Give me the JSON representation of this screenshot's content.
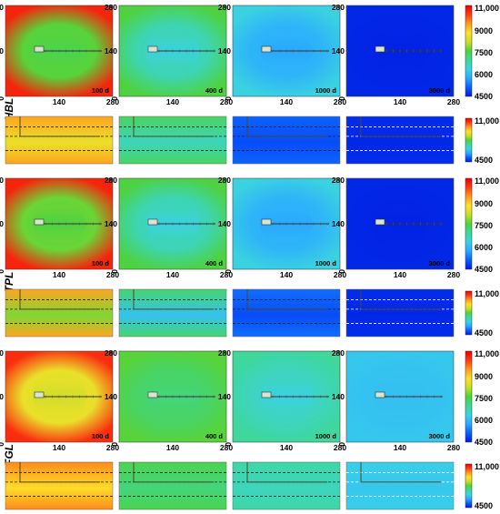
{
  "chart_data": {
    "type": "heatmap",
    "title": "",
    "axis": {
      "min": 0,
      "max": 280,
      "ticks": [
        "0",
        "140",
        "280"
      ]
    },
    "colorbar": {
      "min": 4500,
      "max": 11000,
      "map_ticks": [
        "11,000",
        "9000",
        "7500",
        "6000",
        "4500"
      ],
      "section_ticks": [
        "11,000",
        "4500"
      ]
    },
    "colormap": [
      "#0018e0",
      "#0a5cff",
      "#2aa8ff",
      "#3ad2e6",
      "#3fd79a",
      "#4fd23a",
      "#c8de2a",
      "#ffe12a",
      "#ff9a1e",
      "#ff3a14",
      "#e80000"
    ],
    "rows": [
      {
        "label": "HBL",
        "panels": [
          {
            "time": "100 d",
            "time_color": "#000000",
            "outer": 10600,
            "inner": 7600,
            "halo": 7800
          },
          {
            "time": "400 d",
            "time_color": "#000000",
            "outer": 7700,
            "inner": 6500,
            "halo": 6900
          },
          {
            "time": "1000 d",
            "time_color": "#000000",
            "outer": 6500,
            "inner": 5800,
            "halo": 6000
          },
          {
            "time": "3000 d",
            "time_color": "#ffffff",
            "outer": 4650,
            "inner": 4600,
            "halo": 4620
          }
        ],
        "sections": [
          {
            "bg": 9600,
            "low": 8800
          },
          {
            "bg": 7500,
            "low": 6800
          },
          {
            "bg": 5200,
            "low": 5000
          },
          {
            "bg": 4700,
            "low": 4650
          }
        ]
      },
      {
        "label": "TPL",
        "panels": [
          {
            "time": "100 d",
            "time_color": "#000000",
            "outer": 10600,
            "inner": 7700,
            "halo": 7900
          },
          {
            "time": "400 d",
            "time_color": "#000000",
            "outer": 7700,
            "inner": 6500,
            "halo": 6900
          },
          {
            "time": "1000 d",
            "time_color": "#000000",
            "outer": 6500,
            "inner": 5800,
            "halo": 6000
          },
          {
            "time": "3000 d",
            "time_color": "#ffffff",
            "outer": 4650,
            "inner": 4600,
            "halo": 4620
          }
        ],
        "sections": [
          {
            "bg": 9600,
            "low": 8000
          },
          {
            "bg": 7400,
            "low": 6200
          },
          {
            "bg": 5300,
            "low": 5000
          },
          {
            "bg": 4700,
            "low": 4650
          }
        ]
      },
      {
        "label": "FGL",
        "panels": [
          {
            "time": "100 d",
            "time_color": "#000000",
            "outer": 10500,
            "inner": 8500,
            "halo": 8800
          },
          {
            "time": "400 d",
            "time_color": "#000000",
            "outer": 7800,
            "inner": 7300,
            "halo": 7450
          },
          {
            "time": "1000 d",
            "time_color": "#000000",
            "outer": 7100,
            "inner": 6500,
            "halo": 6800
          },
          {
            "time": "3000 d",
            "time_color": "#ffffff",
            "outer": 6300,
            "inner": 6150,
            "halo": 6200
          }
        ],
        "sections": [
          {
            "bg": 9800,
            "low": 9100
          },
          {
            "bg": 7600,
            "low": 7300
          },
          {
            "bg": 7000,
            "low": 6800
          },
          {
            "bg": 6400,
            "low": 6300
          }
        ]
      }
    ]
  }
}
